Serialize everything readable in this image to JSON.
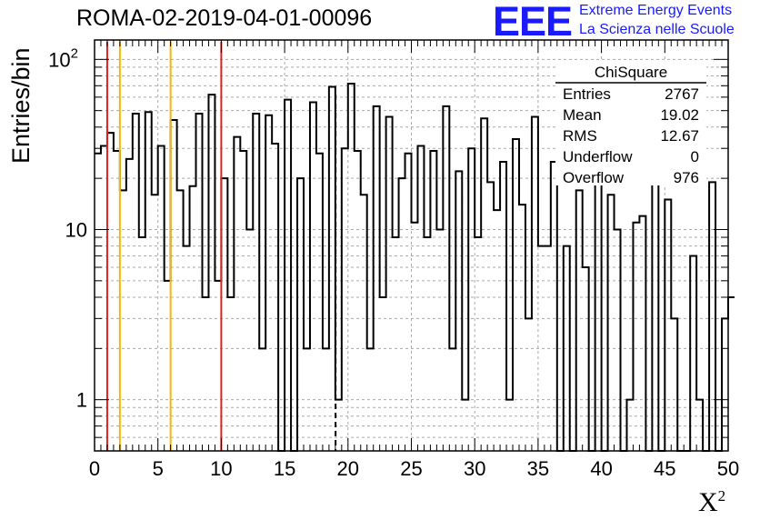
{
  "header": {
    "title": "ROMA-02-2019-04-01-00096",
    "logo_mark": "EEE",
    "logo_line1": "Extreme Energy Events",
    "logo_line2": "La Scienza nelle Scuole"
  },
  "axes": {
    "ylabel": "Entries/bin",
    "xlabel_base": "X",
    "xlabel_exp": "2"
  },
  "stats": {
    "title": "ChiSquare",
    "rows": [
      {
        "label": "Entries",
        "value": "2767"
      },
      {
        "label": "Mean",
        "value": "19.02"
      },
      {
        "label": "RMS",
        "value": "12.67"
      },
      {
        "label": "Underflow",
        "value": "0"
      },
      {
        "label": "Overflow",
        "value": "976"
      }
    ]
  },
  "colors": {
    "red_line": "#e02020",
    "orange_line": "#f5b800",
    "grid": "#aaaaaa"
  },
  "chart_data": {
    "type": "bar",
    "style": "step histogram",
    "xlim": [
      0,
      50
    ],
    "ylim": [
      0.5,
      130
    ],
    "yscale": "log",
    "grid": true,
    "bin_width": 0.5,
    "xticks": [
      "0",
      "5",
      "10",
      "15",
      "20",
      "25",
      "30",
      "35",
      "40",
      "45",
      "50"
    ],
    "yticks": [
      {
        "value": 1,
        "label": "1"
      },
      {
        "value": 10,
        "label": "10"
      },
      {
        "value": 100,
        "label": "10",
        "exp": "2"
      }
    ],
    "values": [
      28,
      31,
      37,
      29,
      17,
      26,
      48,
      9,
      49,
      16,
      31,
      5,
      44,
      17,
      8,
      18,
      48,
      4,
      62,
      5,
      20,
      4,
      35,
      29,
      10,
      48,
      2,
      47,
      32,
      0.01,
      58,
      0.01,
      20,
      2,
      56,
      28,
      2,
      69,
      1,
      30,
      72,
      29,
      16,
      2,
      53,
      4,
      46,
      9,
      20,
      28,
      11,
      31,
      9,
      29,
      10,
      53,
      2,
      22,
      1,
      30,
      9,
      45,
      19,
      13,
      25,
      1,
      34,
      14,
      3,
      46,
      8,
      8,
      25,
      0.01,
      8,
      0.01,
      17,
      6,
      0.01,
      26,
      0.01,
      16,
      10,
      0.01,
      1,
      11,
      12,
      0.01,
      23,
      0.01,
      15,
      3,
      0.01,
      0.01,
      7,
      1,
      0.01,
      19,
      0.01,
      3,
      4
    ],
    "vlines": [
      {
        "x": 1,
        "color": "red"
      },
      {
        "x": 2,
        "color": "orange"
      },
      {
        "x": 6,
        "color": "orange"
      },
      {
        "x": 10,
        "color": "red"
      },
      {
        "x": 19.02,
        "color": "black",
        "dashed": true
      }
    ]
  }
}
